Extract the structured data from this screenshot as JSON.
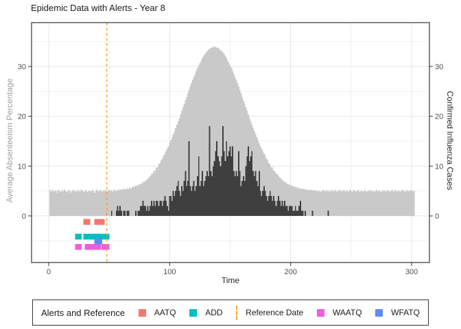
{
  "titles": {
    "main": "Epidemic Data with Alerts - Year 8",
    "y_left": "Average Absenteeism Percentage",
    "y_right": "Confirmed Influenza Cases",
    "x": "Time"
  },
  "colors": {
    "absenteeism_area": "#C9C9C9",
    "cases_bars": "#3F3F3F",
    "reference_line": "#F0A330",
    "grid_major": "#E4E4E4",
    "grid_minor": "#F0F0F0",
    "panel_border": "#333333",
    "tick_text": "#4D4D4D"
  },
  "legend": {
    "title": "Alerts and Reference",
    "items": [
      {
        "label": "AATQ",
        "color": "#F8766D",
        "type": "square"
      },
      {
        "label": "ADD",
        "color": "#00BFBF",
        "type": "square"
      },
      {
        "label": "Reference Date",
        "color": "#F0A330",
        "type": "dashed-line"
      },
      {
        "label": "WAATQ",
        "color": "#F05CDC",
        "type": "square"
      },
      {
        "label": "WFATQ",
        "color": "#5E8CF2",
        "type": "square"
      }
    ]
  },
  "chart_data": {
    "type": "bar",
    "title": "Epidemic Data with Alerts - Year 8",
    "xlabel": "Time",
    "ylabel_left": "Average Absenteeism Percentage",
    "ylabel_right": "Confirmed Influenza Cases",
    "xlim": [
      -14,
      315
    ],
    "ylim": [
      -9.4,
      38.8
    ],
    "x_ticks": [
      0,
      100,
      200,
      300
    ],
    "x_minor": [
      50,
      150,
      250
    ],
    "y_ticks": [
      0,
      10,
      20,
      30
    ],
    "y_minor": [
      -5,
      5,
      15,
      25,
      35
    ],
    "reference_date": 48,
    "series": [
      {
        "name": "Average Absenteeism Percentage",
        "axis": "left",
        "color": "#C9C9C9",
        "t_start": 1,
        "values": [
          5.2,
          4.8,
          5.3,
          4.9,
          5.0,
          5.1,
          4.7,
          5.2,
          5.0,
          4.8,
          5.2,
          4.9,
          5.3,
          5.0,
          4.8,
          5.1,
          5.2,
          4.7,
          5.0,
          5.2,
          4.9,
          5.1,
          4.8,
          5.2,
          5.0,
          4.9,
          5.3,
          5.1,
          4.8,
          5.0,
          5.2,
          4.8,
          5.1,
          5.0,
          4.9,
          5.2,
          5.0,
          4.7,
          5.1,
          5.3,
          4.9,
          5.0,
          5.2,
          4.8,
          5.1,
          5.0,
          5.2,
          4.9,
          5.1,
          5.3,
          5.0,
          5.2,
          4.9,
          5.3,
          5.1,
          5.0,
          5.3,
          5.1,
          5.4,
          5.2,
          5.3,
          5.5,
          5.2,
          5.4,
          5.6,
          5.4,
          5.7,
          5.5,
          5.8,
          5.9,
          5.8,
          6.1,
          6.0,
          6.3,
          6.2,
          6.5,
          6.5,
          6.8,
          6.8,
          7.1,
          7.2,
          7.5,
          7.7,
          8.0,
          8.4,
          8.5,
          9.0,
          9.1,
          9.7,
          9.8,
          10.4,
          10.6,
          11.2,
          11.5,
          12.1,
          12.5,
          13.0,
          13.5,
          14.0,
          14.6,
          15.2,
          15.8,
          16.4,
          17.0,
          17.7,
          18.3,
          19.0,
          19.7,
          20.4,
          21.1,
          21.8,
          22.5,
          23.2,
          23.9,
          24.6,
          25.3,
          26.0,
          26.7,
          27.3,
          27.9,
          28.5,
          29.1,
          29.7,
          30.2,
          30.7,
          31.2,
          31.7,
          32.1,
          32.5,
          32.8,
          33.1,
          33.3,
          33.5,
          33.7,
          33.8,
          33.9,
          34.0,
          33.9,
          33.8,
          33.7,
          33.5,
          33.3,
          33.1,
          32.8,
          32.5,
          32.1,
          31.7,
          31.2,
          30.7,
          30.2,
          29.7,
          29.1,
          28.5,
          27.9,
          27.3,
          26.7,
          26.0,
          25.3,
          24.6,
          23.9,
          23.2,
          22.5,
          21.8,
          21.1,
          20.4,
          19.7,
          19.0,
          18.3,
          17.7,
          17.0,
          16.4,
          15.8,
          15.2,
          14.6,
          14.0,
          13.5,
          13.0,
          12.5,
          12.1,
          11.5,
          11.2,
          10.6,
          10.4,
          9.8,
          9.7,
          9.1,
          9.0,
          8.5,
          8.4,
          8.0,
          7.7,
          7.5,
          7.2,
          7.1,
          6.8,
          6.8,
          6.5,
          6.5,
          6.2,
          6.3,
          6.0,
          6.1,
          5.8,
          5.9,
          5.8,
          5.6,
          5.6,
          5.5,
          5.4,
          5.5,
          5.3,
          5.4,
          5.2,
          5.3,
          5.1,
          5.2,
          5.3,
          5.1,
          5.2,
          5.0,
          5.2,
          4.9,
          5.1,
          5.0,
          4.8,
          5.1,
          5.2,
          4.9,
          5.0,
          5.2,
          4.8,
          5.1,
          4.9,
          5.2,
          5.0,
          4.9,
          5.2,
          4.8,
          5.1,
          5.0,
          5.2,
          4.9,
          5.0,
          5.2,
          4.8,
          5.1,
          5.0,
          4.9,
          5.2,
          5.0,
          4.8,
          5.2,
          5.0,
          4.9,
          5.1,
          5.2,
          4.8,
          5.0,
          5.1,
          4.9,
          5.2,
          5.0,
          4.8,
          5.1,
          5.0,
          5.2,
          4.9,
          5.1,
          4.8,
          5.0,
          5.2,
          4.9,
          5.1,
          5.0,
          4.8,
          5.2,
          5.0,
          5.1,
          4.9,
          5.2,
          5.0,
          4.8,
          5.1,
          5.2,
          4.9,
          5.0,
          5.2,
          4.8,
          5.1,
          5.0,
          4.9,
          5.2,
          5.0,
          5.1,
          4.8,
          5.2,
          4.9,
          5.1,
          5.0,
          5.2,
          4.9,
          5.1
        ]
      },
      {
        "name": "Confirmed Influenza Cases",
        "axis": "right",
        "color": "#3F3F3F",
        "t_start": 1,
        "values": [
          0,
          0,
          0,
          0,
          0,
          0,
          0,
          0,
          0,
          0,
          0,
          0,
          0,
          0,
          0,
          0,
          0,
          0,
          0,
          0,
          0,
          0,
          0,
          0,
          0,
          0,
          0,
          0,
          0,
          0,
          0,
          0,
          0,
          0,
          0,
          0,
          0,
          0,
          0,
          0,
          0,
          0,
          0,
          0,
          0,
          0,
          0,
          0,
          0,
          0,
          0,
          1,
          0,
          0,
          0,
          1,
          2,
          1,
          2,
          1,
          0,
          1,
          1,
          0,
          1,
          1,
          0,
          0,
          0,
          0,
          0,
          1,
          0,
          1,
          1,
          2,
          2,
          3,
          2,
          2,
          1,
          2,
          1,
          2,
          3,
          2,
          3,
          2,
          3,
          3,
          2,
          3,
          3,
          2,
          3,
          4,
          3,
          2,
          1,
          4,
          4,
          3,
          5,
          4,
          5,
          6,
          7,
          5,
          4,
          6,
          5,
          7,
          9,
          6,
          7,
          15,
          6,
          5,
          6,
          7,
          5,
          6,
          8,
          12,
          6,
          7,
          9,
          6,
          7,
          8,
          9,
          8,
          18,
          9,
          8,
          10,
          11,
          13,
          15,
          12,
          11,
          10,
          12,
          18,
          13,
          11,
          15,
          12,
          13,
          14,
          12,
          14,
          9,
          8,
          9,
          8,
          13,
          9,
          6,
          7,
          8,
          7,
          10,
          12,
          14,
          11,
          12,
          13,
          9,
          8,
          9,
          7,
          6,
          9,
          5,
          4,
          5,
          6,
          5,
          4,
          3,
          4,
          5,
          4,
          3,
          4,
          3,
          2,
          3,
          4,
          3,
          2,
          3,
          2,
          3,
          2,
          2,
          1,
          2,
          2,
          2,
          1,
          1,
          2,
          1,
          1,
          2,
          3,
          1,
          1,
          0,
          1,
          0,
          0,
          0,
          0,
          0,
          1,
          0,
          0,
          0,
          0,
          0,
          0,
          0,
          0,
          0,
          0,
          0,
          0,
          1,
          0,
          0,
          0,
          0,
          0,
          0,
          0,
          0,
          0,
          0,
          0,
          0,
          0,
          0,
          0,
          0,
          0,
          0,
          0,
          0,
          0,
          0,
          0,
          0,
          0,
          0,
          0,
          0,
          0,
          0,
          0,
          0,
          0,
          0,
          0,
          0,
          0,
          0,
          0,
          0,
          0,
          0,
          0,
          0,
          0,
          0,
          0,
          0,
          0,
          0,
          0,
          0,
          0,
          0,
          0,
          0,
          0,
          0,
          0,
          0,
          0,
          0,
          0,
          0,
          0,
          0,
          0,
          0,
          0,
          0,
          0
        ]
      }
    ],
    "alerts": [
      {
        "name": "AATQ",
        "color": "#F8766D",
        "y": -1.2,
        "runs": [
          [
            31,
            32
          ],
          [
            40,
            44
          ]
        ]
      },
      {
        "name": "ADD",
        "color": "#00BFBF",
        "y": -4.1,
        "runs": [
          [
            24,
            25
          ],
          [
            31,
            48
          ]
        ]
      },
      {
        "name": "WAATQ",
        "color": "#F05CDC",
        "y": -6.2,
        "runs": [
          [
            24,
            25
          ],
          [
            32,
            41
          ],
          [
            46,
            48
          ]
        ]
      },
      {
        "name": "WFATQ",
        "color": "#5E8CF2",
        "y": -5.1,
        "runs": [
          [
            40,
            42
          ]
        ]
      }
    ]
  }
}
